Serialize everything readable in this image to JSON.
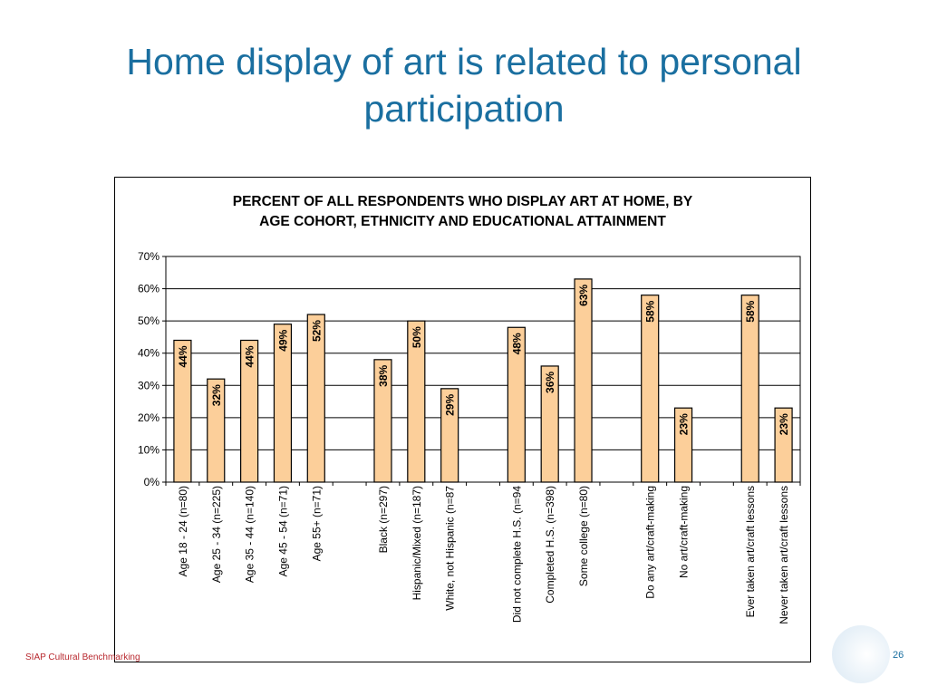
{
  "slide": {
    "title": "Home display of art is related to personal participation",
    "footer": "SIAP Cultural Benchmarking",
    "page_number": "26"
  },
  "colors": {
    "title": "#1a6fa0",
    "bar_fill": "#fccf9a",
    "bar_stroke": "#000000",
    "footer": "#b8282e"
  },
  "chart_data": {
    "type": "bar",
    "title": "PERCENT OF ALL RESPONDENTS WHO DISPLAY ART AT HOME, BY AGE COHORT, ETHNICITY AND EDUCATIONAL ATTAINMENT",
    "title_lines": [
      "PERCENT OF ALL RESPONDENTS WHO DISPLAY ART AT HOME, BY",
      "AGE COHORT, ETHNICITY AND EDUCATIONAL ATTAINMENT"
    ],
    "ylim": [
      0,
      70
    ],
    "yticks": [
      "0%",
      "10%",
      "20%",
      "30%",
      "40%",
      "50%",
      "60%",
      "70%"
    ],
    "grid": true,
    "categories": [
      "Age 18 - 24  (n=80)",
      "Age 25 - 34  (n=225)",
      "Age 35 - 44  (n=140)",
      "Age 45 - 54  (n=71)",
      "Age 55+  (n=71)",
      "",
      "Black (n=297)",
      "Hispanic/Mixed (n=187)",
      "White, not Hispanic (n=87",
      "",
      "Did not complete H.S. (n=94",
      "Completed H.S.  (n=398)",
      "Some college  (n=80)",
      "",
      "Do any art/craft-making",
      "No art/craft-making",
      "",
      "Ever taken art/craft lessons",
      "Never taken art/craft lessons"
    ],
    "values": [
      44,
      32,
      44,
      49,
      52,
      null,
      38,
      50,
      29,
      null,
      48,
      36,
      63,
      null,
      58,
      23,
      null,
      58,
      23
    ],
    "labels": [
      "44%",
      "32%",
      "44%",
      "49%",
      "52%",
      "",
      "38%",
      "50%",
      "29%",
      "",
      "48%",
      "36%",
      "63%",
      "",
      "58%",
      "23%",
      "",
      "58%",
      "23%"
    ]
  }
}
